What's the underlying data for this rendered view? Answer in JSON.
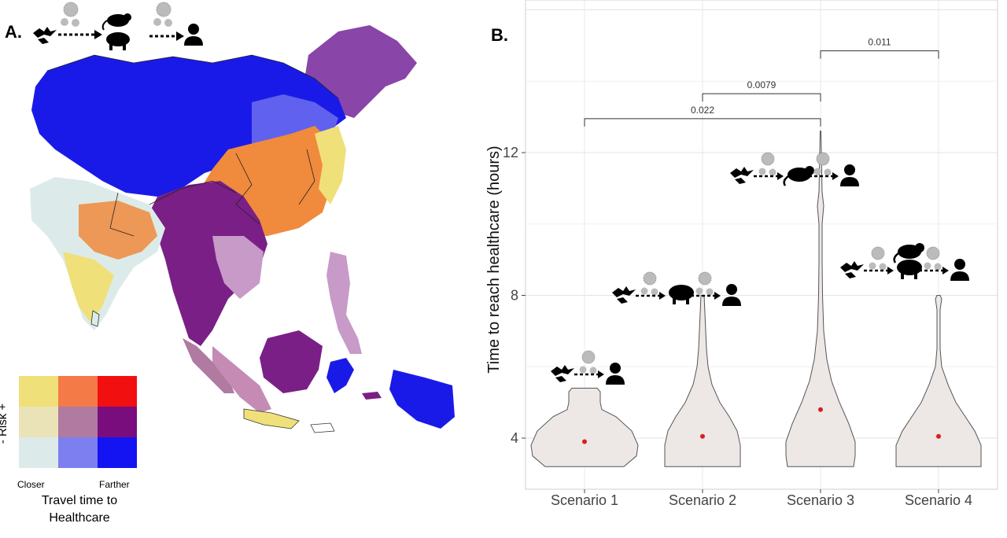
{
  "panel_a": {
    "label": "A.",
    "legend": {
      "y_label": "- Risk +",
      "x_low": "Closer",
      "x_high": "Farther",
      "title_line1": "Travel time to",
      "title_line2": "Healthcare",
      "colors": [
        [
          "#f0e07a",
          "#f47a48",
          "#f20f10"
        ],
        [
          "#ebe3b8",
          "#b07aa1",
          "#7a0d7e"
        ],
        [
          "#dcebea",
          "#7d7ff0",
          "#1414f2"
        ]
      ]
    },
    "pathway_icons": [
      "bat-icon",
      "virus-icon",
      "rat-icon",
      "pig-icon",
      "virus-icon",
      "human-icon"
    ]
  },
  "panel_b": {
    "label": "B."
  },
  "chart_data": {
    "type": "violin",
    "title": "",
    "xlabel": "",
    "ylabel": "Time to reach healthcare (hours)",
    "categories": [
      "Scenario 1",
      "Scenario 2",
      "Scenario 3",
      "Scenario 4"
    ],
    "ylim": [
      3.2,
      13.4
    ],
    "yticks": [
      4,
      8,
      12
    ],
    "grid": true,
    "ranges": [
      [
        3.2,
        5.4
      ],
      [
        3.2,
        8.0
      ],
      [
        3.2,
        12.6
      ],
      [
        3.2,
        8.0
      ]
    ],
    "means": [
      3.9,
      4.05,
      4.8,
      4.05
    ],
    "mean_color": "#d62020",
    "fill_color": "#ede7e6",
    "significance": [
      {
        "from": "Scenario 1",
        "to": "Scenario 3",
        "label": "0.022",
        "y": 12.95
      },
      {
        "from": "Scenario 2",
        "to": "Scenario 3",
        "label": "0.0079",
        "y": 13.65
      },
      {
        "from": "Scenario 3",
        "to": "Scenario 4",
        "label": "0.011",
        "y": 14.85
      }
    ],
    "pathways": [
      [
        "bat-icon",
        "virus-icon",
        "human-icon"
      ],
      [
        "bat-icon",
        "virus-icon",
        "pig-icon",
        "virus-icon",
        "human-icon"
      ],
      [
        "bat-icon",
        "virus-icon",
        "rat-icon",
        "virus-icon",
        "human-icon"
      ],
      [
        "bat-icon",
        "virus-icon",
        "rat-icon",
        "pig-icon",
        "virus-icon",
        "human-icon"
      ]
    ]
  }
}
